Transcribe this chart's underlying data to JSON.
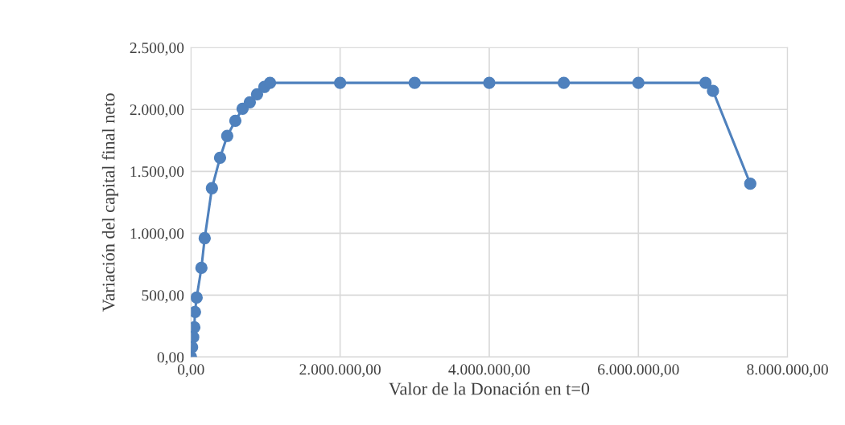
{
  "chart_data": {
    "type": "line",
    "xlabel": "Valor de la Donación en t=0",
    "ylabel": "Variación del capital final neto",
    "x": [
      0,
      15000,
      30000,
      45000,
      54000,
      76000,
      140000,
      184000,
      281000,
      390000,
      486000,
      595000,
      692000,
      789000,
      886000,
      984000,
      1060000,
      2000000,
      3000000,
      4000000,
      5000000,
      6000000,
      6900000,
      7000000,
      7500000
    ],
    "series": [
      {
        "color": "#4f81bd",
        "values": [
          0,
          80,
          160,
          240,
          364,
          480,
          720,
          960,
          1364,
          1610,
          1786,
          1909,
          2006,
          2058,
          2123,
          2182,
          2215,
          2215,
          2215,
          2215,
          2215,
          2215,
          2215,
          2150,
          1400
        ]
      }
    ],
    "marker": "circle",
    "line_style": "solid",
    "grid": true,
    "legend": false,
    "xlim": [
      0,
      8000000
    ],
    "xticks": [
      {
        "value": 0,
        "label": "0,00"
      },
      {
        "value": 2000000,
        "label": "2.000.000,00"
      },
      {
        "value": 4000000,
        "label": "4.000.000,00"
      },
      {
        "value": 6000000,
        "label": "6.000.000,00"
      },
      {
        "value": 8000000,
        "label": "8.000.000,00"
      }
    ],
    "ylim": [
      0,
      2500
    ],
    "yticks": [
      {
        "value": 0,
        "label": "0,00"
      },
      {
        "value": 500,
        "label": "500,00"
      },
      {
        "value": 1000,
        "label": "1.000,00"
      },
      {
        "value": 1500,
        "label": "1.500,00"
      },
      {
        "value": 2000,
        "label": "2.000,00"
      },
      {
        "value": 2500,
        "label": "2.500,00"
      }
    ]
  }
}
